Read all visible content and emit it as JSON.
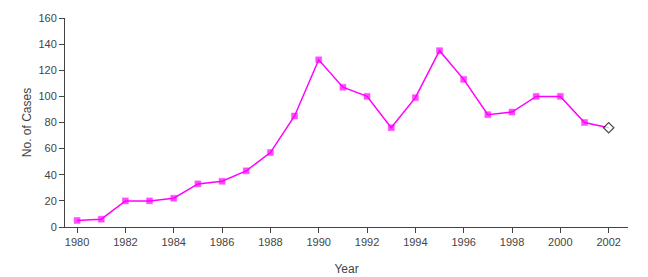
{
  "chart_data": {
    "type": "line",
    "x": [
      1980,
      1981,
      1982,
      1983,
      1984,
      1985,
      1986,
      1987,
      1988,
      1989,
      1990,
      1991,
      1992,
      1993,
      1994,
      1995,
      1996,
      1997,
      1998,
      1999,
      2000,
      2001,
      2002
    ],
    "values": [
      5,
      6,
      20,
      20,
      22,
      33,
      35,
      43,
      57,
      85,
      128,
      107,
      100,
      76,
      99,
      135,
      113,
      86,
      88,
      100,
      100,
      80,
      76
    ],
    "color": "#FF00FF",
    "marker": "square",
    "xlabel": "Year",
    "ylabel": "No. of Cases",
    "xlim": [
      1979.5,
      2002.8
    ],
    "xticks": [
      1980,
      1982,
      1984,
      1986,
      1988,
      1990,
      1992,
      1994,
      1996,
      1998,
      2000,
      2002
    ],
    "ylim": [
      0,
      160
    ],
    "yticks": [
      0,
      20,
      40,
      60,
      80,
      100,
      120,
      140,
      160
    ],
    "grid": false
  }
}
